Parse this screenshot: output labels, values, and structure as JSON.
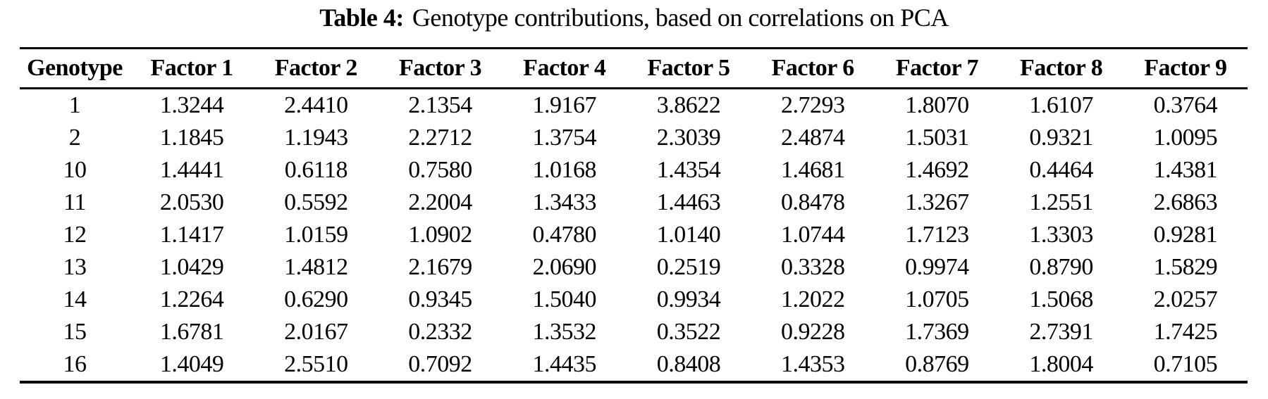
{
  "caption": {
    "label": "Table 4:",
    "text": "Genotype contributions, based on correlations on PCA"
  },
  "table": {
    "columns": [
      "Genotype",
      "Factor 1",
      "Factor 2",
      "Factor 3",
      "Factor 4",
      "Factor 5",
      "Factor 6",
      "Factor 7",
      "Factor 8",
      "Factor 9"
    ],
    "rows": [
      [
        "1",
        "1.3244",
        "2.4410",
        "2.1354",
        "1.9167",
        "3.8622",
        "2.7293",
        "1.8070",
        "1.6107",
        "0.3764"
      ],
      [
        "2",
        "1.1845",
        "1.1943",
        "2.2712",
        "1.3754",
        "2.3039",
        "2.4874",
        "1.5031",
        "0.9321",
        "1.0095"
      ],
      [
        "10",
        "1.4441",
        "0.6118",
        "0.7580",
        "1.0168",
        "1.4354",
        "1.4681",
        "1.4692",
        "0.4464",
        "1.4381"
      ],
      [
        "11",
        "2.0530",
        "0.5592",
        "2.2004",
        "1.3433",
        "1.4463",
        "0.8478",
        "1.3267",
        "1.2551",
        "2.6863"
      ],
      [
        "12",
        "1.1417",
        "1.0159",
        "1.0902",
        "0.4780",
        "1.0140",
        "1.0744",
        "1.7123",
        "1.3303",
        "0.9281"
      ],
      [
        "13",
        "1.0429",
        "1.4812",
        "2.1679",
        "2.0690",
        "0.2519",
        "0.3328",
        "0.9974",
        "0.8790",
        "1.5829"
      ],
      [
        "14",
        "1.2264",
        "0.6290",
        "0.9345",
        "1.5040",
        "0.9934",
        "1.2022",
        "1.0705",
        "1.5068",
        "2.0257"
      ],
      [
        "15",
        "1.6781",
        "2.0167",
        "0.2332",
        "1.3532",
        "0.3522",
        "0.9228",
        "1.7369",
        "2.7391",
        "1.7425"
      ],
      [
        "16",
        "1.4049",
        "2.5510",
        "0.7092",
        "1.4435",
        "0.8408",
        "1.4353",
        "0.8769",
        "1.8004",
        "0.7105"
      ]
    ]
  },
  "colors": {
    "text": "#000000",
    "background": "#ffffff",
    "rule": "#000000"
  }
}
